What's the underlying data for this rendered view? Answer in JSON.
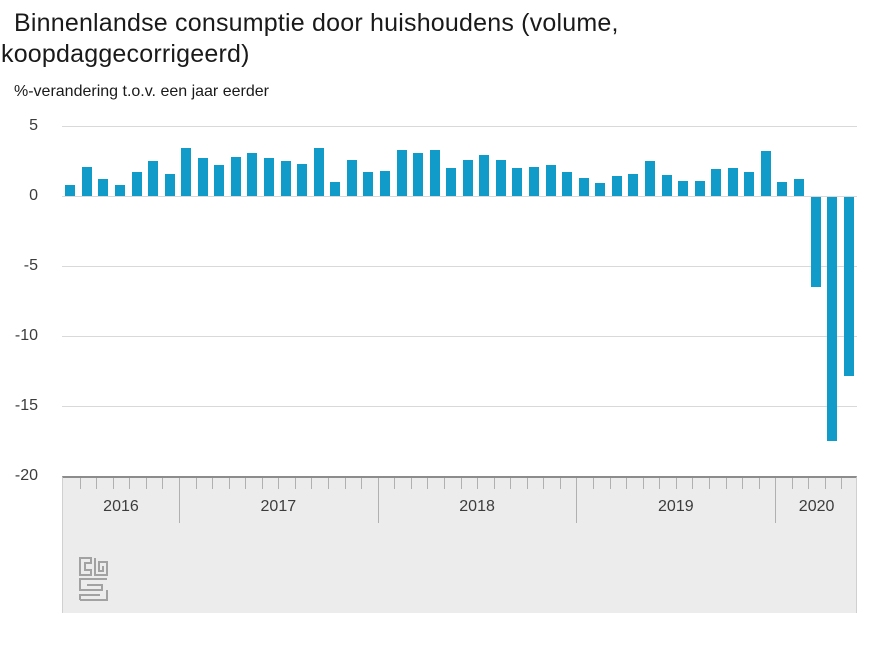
{
  "header": {
    "title_line1": "Binnenlandse consumptie door huishoudens (volume,",
    "title_line2": "koopdaggecorrigeerd)",
    "subtitle": "%-verandering t.o.v. een jaar eerder"
  },
  "branding": {
    "logo_icon": "cbs-logo",
    "logo_alt": "CBS"
  },
  "chart_data": {
    "type": "bar",
    "title": "Binnenlandse consumptie door huishoudens (volume, koopdaggecorrigeerd)",
    "subtitle": "%-verandering t.o.v. een jaar eerder",
    "xlabel": "",
    "ylabel": "%-verandering t.o.v. een jaar eerder",
    "ylim": [
      -20,
      5
    ],
    "yticks": [
      5,
      0,
      -5,
      -10,
      -15,
      -20
    ],
    "grid": true,
    "legend": "none",
    "bar_color": "#119bc9",
    "x_axis_years": [
      {
        "label": "2016",
        "months": 7
      },
      {
        "label": "2017",
        "months": 12
      },
      {
        "label": "2018",
        "months": 12
      },
      {
        "label": "2019",
        "months": 12
      },
      {
        "label": "2020",
        "months": 5
      }
    ],
    "x": [
      "2016-06",
      "2016-07",
      "2016-08",
      "2016-09",
      "2016-10",
      "2016-11",
      "2016-12",
      "2017-01",
      "2017-02",
      "2017-03",
      "2017-04",
      "2017-05",
      "2017-06",
      "2017-07",
      "2017-08",
      "2017-09",
      "2017-10",
      "2017-11",
      "2017-12",
      "2018-01",
      "2018-02",
      "2018-03",
      "2018-04",
      "2018-05",
      "2018-06",
      "2018-07",
      "2018-08",
      "2018-09",
      "2018-10",
      "2018-11",
      "2018-12",
      "2019-01",
      "2019-02",
      "2019-03",
      "2019-04",
      "2019-05",
      "2019-06",
      "2019-07",
      "2019-08",
      "2019-09",
      "2019-10",
      "2019-11",
      "2019-12",
      "2020-01",
      "2020-02",
      "2020-03",
      "2020-04",
      "2020-05"
    ],
    "values": [
      0.8,
      2.1,
      1.2,
      0.8,
      1.7,
      2.5,
      1.6,
      3.4,
      2.7,
      2.2,
      2.8,
      3.1,
      2.7,
      2.5,
      2.3,
      3.4,
      1.0,
      2.6,
      1.7,
      1.8,
      3.3,
      3.1,
      3.3,
      2.0,
      2.6,
      2.9,
      2.6,
      2.0,
      2.1,
      2.2,
      1.7,
      1.3,
      0.9,
      1.4,
      1.6,
      2.5,
      1.5,
      1.1,
      1.1,
      1.9,
      2.0,
      1.7,
      3.2,
      1.0,
      1.2,
      -6.4,
      -17.4,
      -12.8
    ]
  }
}
